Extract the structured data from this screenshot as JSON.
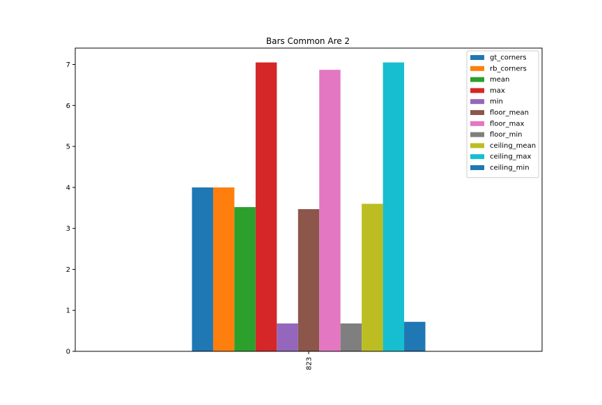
{
  "chart_data": {
    "type": "bar",
    "title": "Bars Common Are 2",
    "xlabel": "",
    "ylabel": "",
    "categories": [
      "823"
    ],
    "ylim": [
      0,
      7.4
    ],
    "yticks": [
      0,
      1,
      2,
      3,
      4,
      5,
      6,
      7
    ],
    "grid": false,
    "legend_position": "top-right",
    "series": [
      {
        "name": "gt_corners",
        "color": "#1f77b4",
        "values": [
          4.0
        ]
      },
      {
        "name": "rb_corners",
        "color": "#ff7f0e",
        "values": [
          4.0
        ]
      },
      {
        "name": "mean",
        "color": "#2ca02c",
        "values": [
          3.52
        ]
      },
      {
        "name": "max",
        "color": "#d62728",
        "values": [
          7.05
        ]
      },
      {
        "name": "min",
        "color": "#9467bd",
        "values": [
          0.68
        ]
      },
      {
        "name": "floor_mean",
        "color": "#8c564b",
        "values": [
          3.47
        ]
      },
      {
        "name": "floor_max",
        "color": "#e377c2",
        "values": [
          6.87
        ]
      },
      {
        "name": "floor_min",
        "color": "#7f7f7f",
        "values": [
          0.68
        ]
      },
      {
        "name": "ceiling_mean",
        "color": "#bcbd22",
        "values": [
          3.6
        ]
      },
      {
        "name": "ceiling_max",
        "color": "#17becf",
        "values": [
          7.05
        ]
      },
      {
        "name": "ceiling_min",
        "color": "#1f77b4",
        "values": [
          0.72
        ]
      }
    ]
  }
}
